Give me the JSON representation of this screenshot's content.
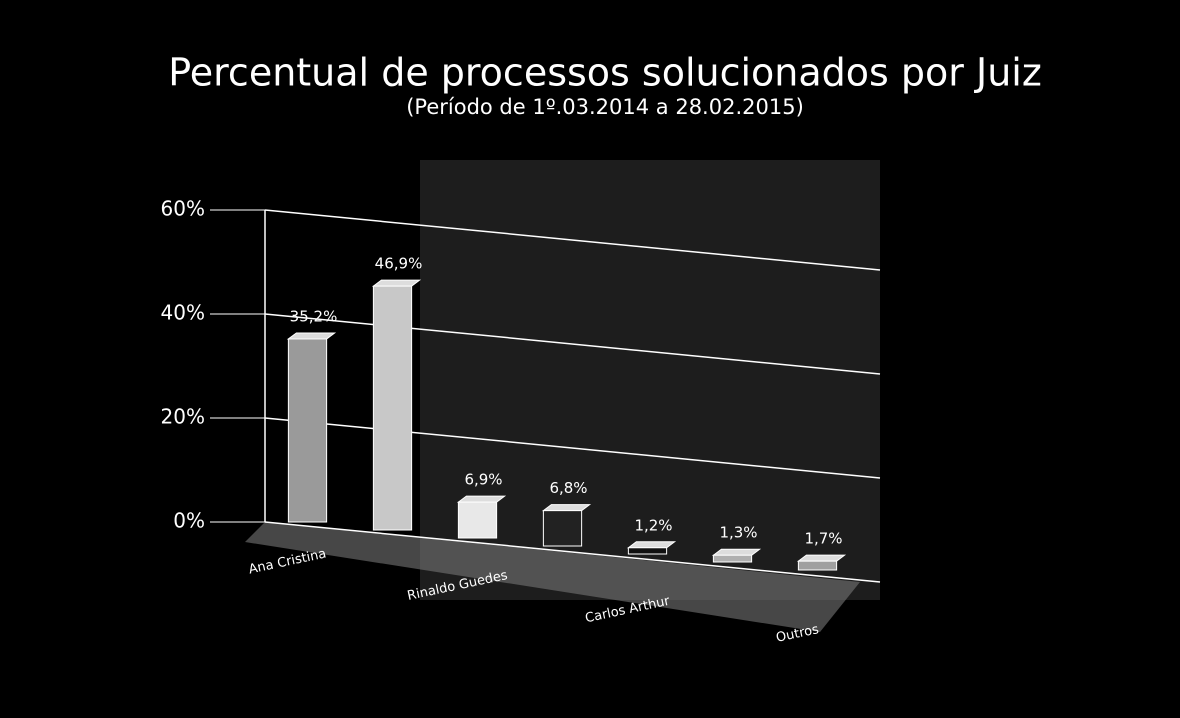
{
  "chart_data": {
    "type": "bar",
    "title": "Percentual de processos solucionados por Juiz",
    "subtitle": "(Período de 1º.03.2014  a  28.02.2015)",
    "categories": [
      "Ana Cristina",
      null,
      "Rinaldo Guedes",
      null,
      "Carlos Arthur",
      null,
      "Outros"
    ],
    "values": [
      35.2,
      46.9,
      6.9,
      6.8,
      1.2,
      1.3,
      1.7
    ],
    "value_labels": [
      "35,2%",
      "46,9%",
      "6,9%",
      "6,8%",
      "1,2%",
      "1,3%",
      "1,7%"
    ],
    "colors": [
      "#9a9a9a",
      "#c8c8c8",
      "#e8e8e8",
      "#222222",
      "#111111",
      "#b0b0b0",
      "#a0a0a0"
    ],
    "ylim": [
      0,
      60
    ],
    "yticks": [
      {
        "value": 0,
        "label": "0%"
      },
      {
        "value": 20,
        "label": "20%"
      },
      {
        "value": 40,
        "label": "40%"
      },
      {
        "value": 60,
        "label": "60%"
      }
    ],
    "grid": true
  }
}
